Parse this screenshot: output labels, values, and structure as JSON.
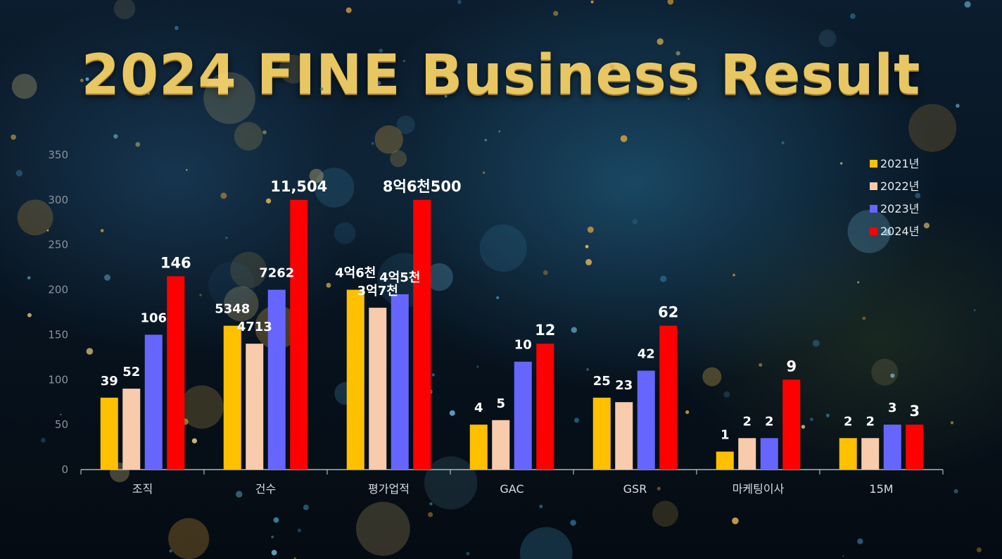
{
  "title": "2024 FINE Business Result",
  "chart_data": {
    "type": "bar",
    "categories": [
      "조직",
      "건수",
      "평가업적",
      "GAC",
      "GSR",
      "마케팅이사",
      "15M"
    ],
    "ylim": [
      0,
      350
    ],
    "yticks": [
      0,
      50,
      100,
      150,
      200,
      250,
      300,
      350
    ],
    "grid": false,
    "legend_position": "top-right",
    "series": [
      {
        "name": "2021년",
        "color": "#ffc000",
        "values": [
          80,
          160,
          200,
          50,
          80,
          20,
          35
        ],
        "labels": [
          "39",
          "5348",
          "4억6천",
          "4",
          "25",
          "1",
          "2"
        ]
      },
      {
        "name": "2022년",
        "color": "#f8cbad",
        "values": [
          90,
          140,
          180,
          55,
          75,
          35,
          35
        ],
        "labels": [
          "52",
          "4713",
          "3억7천",
          "5",
          "23",
          "2",
          "2"
        ]
      },
      {
        "name": "2023년",
        "color": "#6666ff",
        "values": [
          150,
          200,
          195,
          120,
          110,
          35,
          50
        ],
        "labels": [
          "106",
          "7262",
          "4억5천",
          "10",
          "42",
          "2",
          "3"
        ]
      },
      {
        "name": "2024년",
        "color": "#ff0000",
        "values": [
          215,
          300,
          300,
          140,
          160,
          100,
          50
        ],
        "labels": [
          "146",
          "11,504",
          "8억6천500",
          "12",
          "62",
          "9",
          "3"
        ]
      }
    ]
  }
}
